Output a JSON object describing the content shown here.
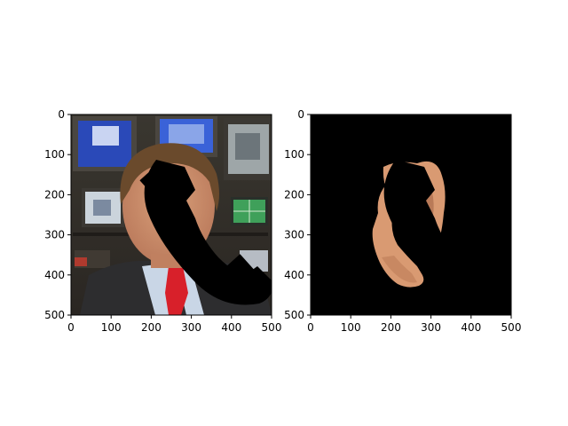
{
  "chart_data": [
    {
      "type": "image",
      "panel": "left",
      "content": "photo of a man in a suit with a red tie in front of monitors, with a black telephone-handset shape overlaid across the face",
      "xlim": [
        0,
        500
      ],
      "ylim": [
        500,
        0
      ],
      "xticks": [
        0,
        100,
        200,
        300,
        400,
        500
      ],
      "yticks": [
        0,
        100,
        200,
        300,
        400,
        500
      ],
      "handset_color": "#000000"
    },
    {
      "type": "image",
      "panel": "right",
      "content": "segmented skin region of the face on a black background, with the telephone-handset shape cut out",
      "xlim": [
        0,
        500
      ],
      "ylim": [
        500,
        0
      ],
      "xticks": [
        0,
        100,
        200,
        300,
        400,
        500
      ],
      "yticks": [
        0,
        100,
        200,
        300,
        400,
        500
      ],
      "background_color": "#000000",
      "skin_color": "#d99a72"
    }
  ]
}
